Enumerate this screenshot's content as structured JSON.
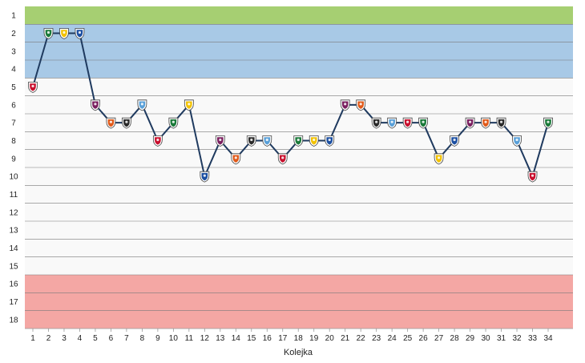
{
  "chart_data": {
    "type": "line",
    "title": "",
    "xlabel": "Kolejka",
    "ylabel": "",
    "x": [
      1,
      2,
      3,
      4,
      5,
      6,
      7,
      8,
      9,
      10,
      11,
      12,
      13,
      14,
      15,
      16,
      17,
      18,
      19,
      20,
      21,
      22,
      23,
      24,
      25,
      26,
      27,
      28,
      29,
      30,
      31,
      32,
      33,
      34
    ],
    "y_ticks": [
      1,
      2,
      3,
      4,
      5,
      6,
      7,
      8,
      9,
      10,
      11,
      12,
      13,
      14,
      15,
      16,
      17,
      18
    ],
    "ylim": [
      18,
      1
    ],
    "y_inverted": true,
    "grid": true,
    "series": [
      {
        "values": [
          5,
          2,
          2,
          2,
          6,
          7,
          7,
          6,
          8,
          7,
          6,
          10,
          8,
          9,
          8,
          8,
          9,
          8,
          8,
          8,
          6,
          6,
          7,
          7,
          7,
          7,
          9,
          8,
          7,
          7,
          7,
          8,
          10,
          7
        ],
        "color": "#1f3a5f"
      }
    ],
    "bands": [
      {
        "from": 1,
        "to": 1,
        "color": "#a6cf72"
      },
      {
        "from": 2,
        "to": 4,
        "color": "#a8c9e6"
      },
      {
        "from": 5,
        "to": 15,
        "color": "#f9f9f9"
      },
      {
        "from": 16,
        "to": 18,
        "color": "#f4a7a4"
      }
    ],
    "marker_icon": "club-crest-icon"
  }
}
